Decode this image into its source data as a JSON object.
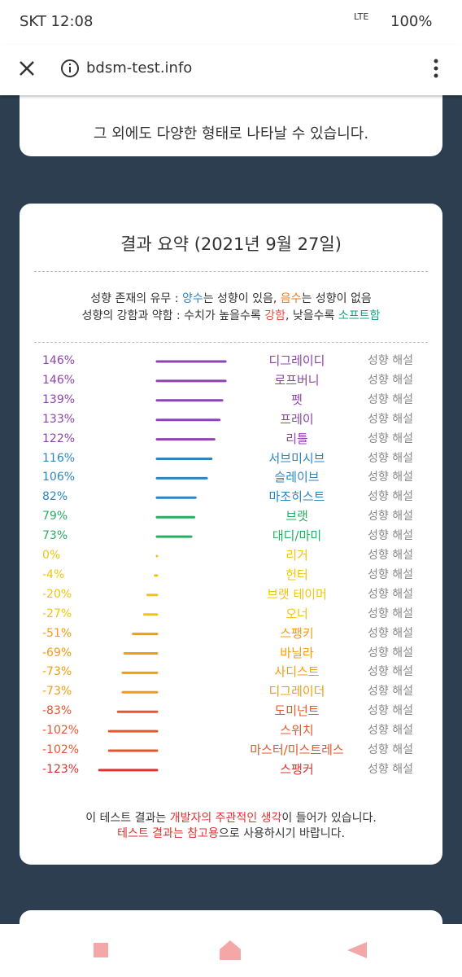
{
  "status_bar": {
    "time": "SKT 12:08",
    "network": "LTE",
    "battery": "100%"
  },
  "url_bar": {
    "url": "bdsm-test.info"
  },
  "top_card": {
    "text": "그 외에도 다양한 형태로 나타날 수 있습니다."
  },
  "summary": {
    "title": "결과 요약 (2021년 9월 27일)",
    "legend": [
      [
        {
          "text": "성향 존재의 유무 : ",
          "color": "#333333"
        },
        {
          "text": "양수",
          "color": "#2e86c1"
        },
        {
          "text": "는 성향이 있음, ",
          "color": "#333333"
        },
        {
          "text": "음수",
          "color": "#e67e22"
        },
        {
          "text": "는 성향이 없음",
          "color": "#333333"
        }
      ],
      [
        {
          "text": "성향의 강함과 약함 : 수치가 높을수록 ",
          "color": "#333333"
        },
        {
          "text": "강함",
          "color": "#e74c3c"
        },
        {
          "text": ", 낮을수록 ",
          "color": "#333333"
        },
        {
          "text": "소프트함",
          "color": "#16a085"
        }
      ]
    ],
    "items": [
      {
        "label": "146%",
        "value": 146,
        "name": "디그레이디",
        "color": "#8e44ad",
        "link": "성향 해설"
      },
      {
        "label": "146%",
        "value": 146,
        "name": "로프버니",
        "color": "#8e44ad",
        "link": "성향 해설"
      },
      {
        "label": "139%",
        "value": 139,
        "name": "펫",
        "color": "#8e44ad",
        "link": "성향 해설"
      },
      {
        "label": "133%",
        "value": 133,
        "name": "프레이",
        "color": "#8e44ad",
        "link": "성향 해설"
      },
      {
        "label": "122%",
        "value": 122,
        "name": "리틀",
        "color": "#8e44ad",
        "link": "성향 해설"
      },
      {
        "label": "116%",
        "value": 116,
        "name": "서브미시브",
        "color": "#2e86c1",
        "link": "성향 해설"
      },
      {
        "label": "106%",
        "value": 106,
        "name": "슬레이브",
        "color": "#2e86c1",
        "link": "성향 해설"
      },
      {
        "label": "82%",
        "value": 82,
        "name": "마조히스트",
        "color": "#2e86c1",
        "link": "성향 해설"
      },
      {
        "label": "79%",
        "value": 79,
        "name": "브랫",
        "color": "#27ae60",
        "link": "성향 해설"
      },
      {
        "label": "73%",
        "value": 73,
        "name": "대디/마미",
        "color": "#27ae60",
        "link": "성향 해설"
      },
      {
        "label": "0%",
        "value": 0,
        "name": "리거",
        "color": "#f1c40f",
        "link": "성향 해설"
      },
      {
        "label": "-4%",
        "value": -4,
        "name": "헌터",
        "color": "#f1c40f",
        "link": "성향 해설"
      },
      {
        "label": "-20%",
        "value": -20,
        "name": "브랫 테이머",
        "color": "#f1c40f",
        "link": "성향 해설"
      },
      {
        "label": "-27%",
        "value": -27,
        "name": "오너",
        "color": "#f1c40f",
        "link": "성향 해설"
      },
      {
        "label": "-51%",
        "value": -51,
        "name": "스팽키",
        "color": "#f39c12",
        "link": "성향 해설"
      },
      {
        "label": "-69%",
        "value": -69,
        "name": "바닐라",
        "color": "#f39c12",
        "link": "성향 해설"
      },
      {
        "label": "-73%",
        "value": -73,
        "name": "사디스트",
        "color": "#f39c12",
        "link": "성향 해설"
      },
      {
        "label": "-73%",
        "value": -73,
        "name": "디그레이더",
        "color": "#f39c12",
        "link": "성향 해설"
      },
      {
        "label": "-83%",
        "value": -83,
        "name": "도미넌트",
        "color": "#e4572e",
        "link": "성향 해설"
      },
      {
        "label": "-102%",
        "value": -102,
        "name": "스위치",
        "color": "#e4572e",
        "link": "성향 해설"
      },
      {
        "label": "-102%",
        "value": -102,
        "name": "마스터/미스트레스",
        "color": "#e4572e",
        "link": "성향 해설"
      },
      {
        "label": "-123%",
        "value": -123,
        "name": "스팽커",
        "color": "#e03131",
        "link": "성향 해설"
      }
    ],
    "footer": [
      [
        {
          "text": "이 테스트 결과는 ",
          "color": "#333333"
        },
        {
          "text": "개발자의 주관적인 생각",
          "color": "#e03131"
        },
        {
          "text": "이 들어가 있습니다.",
          "color": "#333333"
        }
      ],
      [
        {
          "text": "테스트 결과는 참고용",
          "color": "#e03131"
        },
        {
          "text": "으로 사용하시기 바랍니다.",
          "color": "#333333"
        }
      ]
    ]
  }
}
